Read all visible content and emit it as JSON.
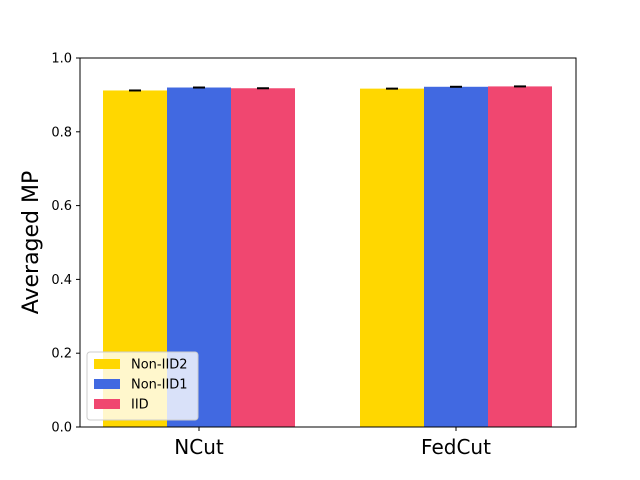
{
  "chart_data": {
    "type": "bar",
    "title": "",
    "xlabel": "",
    "ylabel": "Averaged MP",
    "ylim": [
      0.0,
      1.0
    ],
    "yticks": [
      "0.0",
      "0.2",
      "0.4",
      "0.6",
      "0.8",
      "1.0"
    ],
    "categories": [
      "NCut",
      "FedCut"
    ],
    "series": [
      {
        "name": "Non-IID2",
        "color": "#FFD700",
        "values": [
          0.912,
          0.917
        ],
        "errors": [
          0.002,
          0.002
        ]
      },
      {
        "name": "Non-IID1",
        "color": "#4169E1",
        "values": [
          0.92,
          0.922
        ],
        "errors": [
          0.002,
          0.001
        ]
      },
      {
        "name": "IID",
        "color": "#F04770",
        "values": [
          0.918,
          0.923
        ],
        "errors": [
          0.002,
          0.001
        ]
      }
    ],
    "legend_position": "lower-left",
    "grid": false
  }
}
